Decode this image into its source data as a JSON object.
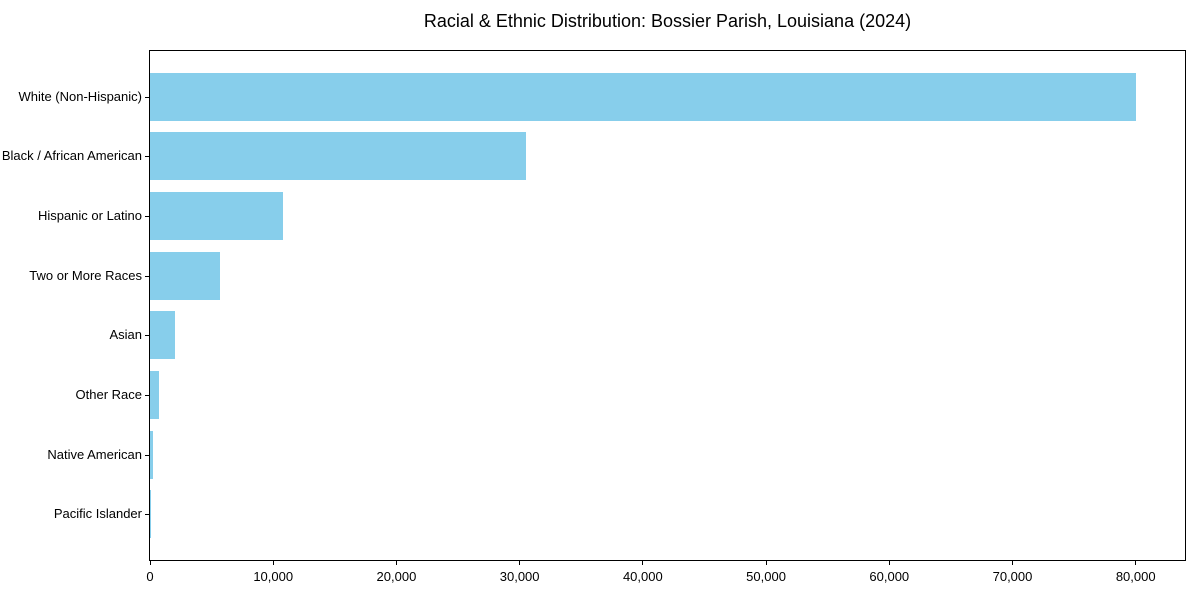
{
  "chart_data": {
    "type": "bar",
    "orientation": "horizontal",
    "title": "Racial & Ethnic Distribution: Bossier Parish, Louisiana (2024)",
    "categories": [
      "White (Non-Hispanic)",
      "Black / African American",
      "Hispanic or Latino",
      "Two or More Races",
      "Asian",
      "Other Race",
      "Native American",
      "Pacific Islander"
    ],
    "values": [
      80000,
      30500,
      10800,
      5700,
      2050,
      750,
      250,
      60
    ],
    "xlabel": "",
    "ylabel": "",
    "xlim": [
      0,
      84000
    ],
    "x_ticks": [
      0,
      10000,
      20000,
      30000,
      40000,
      50000,
      60000,
      70000,
      80000
    ],
    "x_tick_labels": [
      "0",
      "10,000",
      "20,000",
      "30,000",
      "40,000",
      "50,000",
      "60,000",
      "70,000",
      "80,000"
    ],
    "bar_color": "#87CEEB",
    "axis_color": "#000000",
    "grid": false,
    "legend": "none"
  }
}
